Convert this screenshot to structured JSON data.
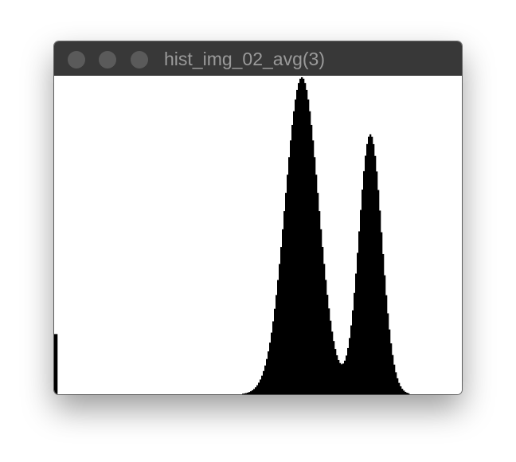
{
  "window": {
    "title": "hist_img_02_avg(3)",
    "titlebar_color": "#383838",
    "title_color": "#9a9a9a",
    "controls": [
      {
        "name": "close",
        "color": "#5a5a5a"
      },
      {
        "name": "minimize",
        "color": "#5a5a5a"
      },
      {
        "name": "zoom",
        "color": "#5a5a5a"
      }
    ]
  },
  "chart_data": {
    "type": "bar",
    "xlim": [
      0,
      255
    ],
    "ylim": [
      0,
      1
    ],
    "bar_color": "#000000",
    "background": "#ffffff",
    "grid": false,
    "notes_visible": "no axes, ticks or labels are drawn",
    "peaks": [
      {
        "center": 155,
        "height": 1.0,
        "width": 10.5
      },
      {
        "center": 198,
        "height": 0.82,
        "width": 7.2
      }
    ],
    "spikes": [
      {
        "bin": 0,
        "height": 0.19
      },
      {
        "bin": 1,
        "height": 0.19
      }
    ],
    "range": [
      110,
      222
    ]
  }
}
